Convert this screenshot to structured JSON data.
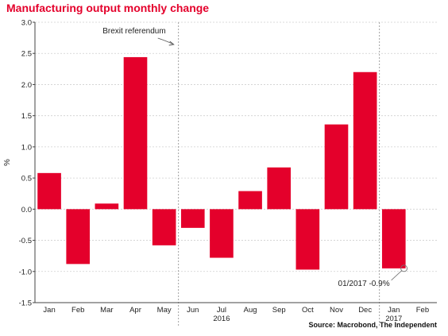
{
  "chart_data": {
    "type": "bar",
    "title": "Manufacturing output monthly change",
    "ylabel": "%",
    "xlabel": "",
    "ylim": [
      -1.5,
      3.0
    ],
    "yticks": [
      "3.0",
      "2.5",
      "2.0",
      "1.5",
      "1.0",
      "0.5",
      "0.0",
      "-0.5",
      "-1.0",
      "-1.5"
    ],
    "categories": [
      "Jan",
      "Feb",
      "Mar",
      "Apr",
      "May",
      "Jun",
      "Jul",
      "Aug",
      "Sep",
      "Oct",
      "Nov",
      "Dec",
      "Jan",
      "Feb"
    ],
    "values": [
      0.58,
      -0.88,
      0.09,
      2.44,
      -0.58,
      -0.3,
      -0.78,
      0.29,
      0.67,
      -0.97,
      1.36,
      2.2,
      -0.95,
      null
    ],
    "year_labels": [
      {
        "text": "2016",
        "category_index": 6
      },
      {
        "text": "2017",
        "category_index": 12
      }
    ],
    "annotations": [
      {
        "text": "Brexit referendum",
        "category_index": 4
      },
      {
        "text": "01/2017 -0.9%",
        "category_index": 12
      }
    ],
    "bar_color": "#e4002b",
    "grid": true
  },
  "source": "Source: Macrobond, The Independent"
}
